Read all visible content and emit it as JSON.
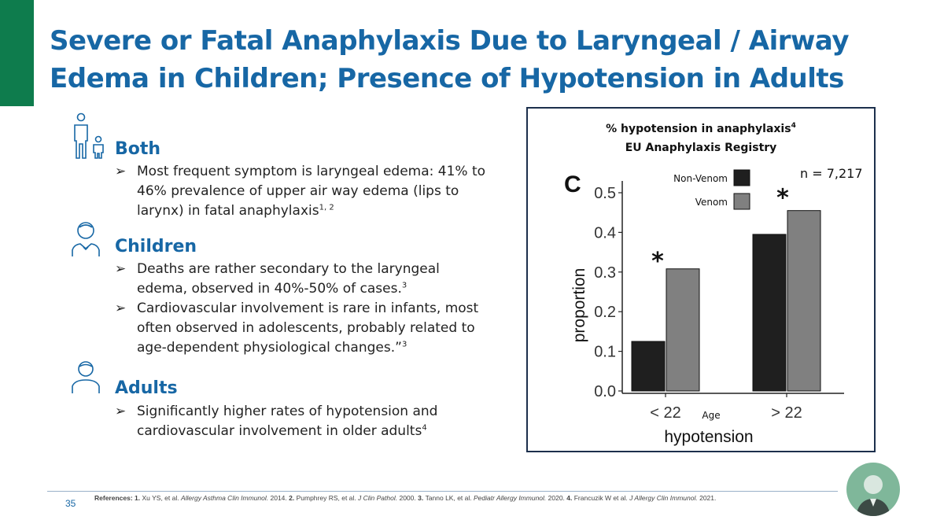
{
  "title_lines": [
    "Severe or Fatal Anaphylaxis Due to Laryngeal / Airway",
    "Edema in Children; Presence of Hypotension in Adults"
  ],
  "sections": [
    {
      "icon": "parent-child-icon",
      "heading": "Both",
      "bullets": [
        {
          "text": "Most frequent symptom is laryngeal edema: 41% to 46% prevalence of upper air way edema (lips to larynx) in fatal anaphylaxis",
          "sup": "1, 2",
          "tail": ""
        }
      ]
    },
    {
      "icon": "child-icon",
      "heading": "Children",
      "bullets": [
        {
          "text": "Deaths are rather secondary to the laryngeal edema, observed in 40%-50% of cases.",
          "sup": "3",
          "tail": ""
        },
        {
          "text": "Cardiovascular involvement is rare in infants, most often observed in adolescents, probably related to age-dependent physiological changes.”",
          "sup": "3",
          "tail": ""
        }
      ]
    },
    {
      "icon": "adult-icon",
      "heading": "Adults",
      "bullets": [
        {
          "text": "Significantly higher rates of hypotension and cardiovascular involvement in older adults",
          "sup": "4",
          "tail": ""
        }
      ]
    }
  ],
  "bullet_marker": "➢",
  "chart_data": {
    "type": "bar",
    "title": "% hypotension in anaphylaxis",
    "title_sup": "4",
    "subtitle": "EU Anaphylaxis Registry",
    "panel_label": "C",
    "n_label": "n = 7,217",
    "categories": [
      "< 22",
      "> 22"
    ],
    "series": [
      {
        "name": "Non-Venom",
        "color": "#1f1f1f",
        "values": [
          0.125,
          0.395
        ]
      },
      {
        "name": "Venom",
        "color": "#808080",
        "values": [
          0.308,
          0.455
        ]
      }
    ],
    "significance": [
      "*",
      "*"
    ],
    "xlabel": "hypotension",
    "xlabel_mid": "Age",
    "ylabel": "proportion",
    "ylim": [
      0,
      0.5
    ],
    "yticks": [
      "0.0",
      "0.1",
      "0.2",
      "0.3",
      "0.4",
      "0.5"
    ],
    "ytick_values": [
      0,
      0.1,
      0.2,
      0.3,
      0.4,
      0.5
    ],
    "legend_position": "top"
  },
  "footer": {
    "page_number": "35",
    "references_label": "References:",
    "references": [
      {
        "num": "1.",
        "authors": "Xu YS, et al.",
        "journal": "Allergy Asthma Clin Immunol.",
        "year": "2014."
      },
      {
        "num": "2.",
        "authors": "Pumphrey RS, et al.",
        "journal": "J Clin Pathol.",
        "year": "2000."
      },
      {
        "num": "3.",
        "authors": "Tanno LK, et al.",
        "journal": "Pediatr Allergy Immunol.",
        "year": "2020."
      },
      {
        "num": "4.",
        "authors": "Francuzik W et al.",
        "journal": "J Allergy Clin Immunol.",
        "year": "2021."
      }
    ]
  },
  "colors": {
    "brand_green": "#0e7c4d",
    "title_blue": "#1767a5",
    "chart_border": "#1c2f4c"
  }
}
